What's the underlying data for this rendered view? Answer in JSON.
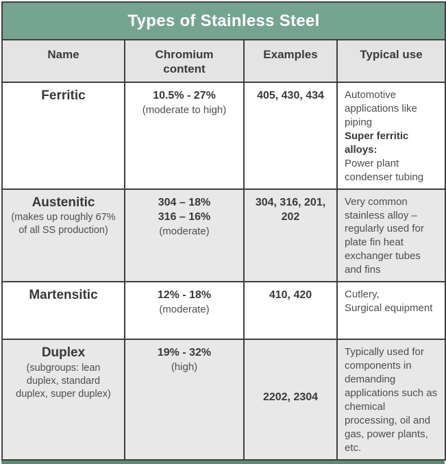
{
  "title": "Types of Stainless Steel",
  "columns": [
    "Name",
    "Chromium content",
    "Examples",
    "Typical use"
  ],
  "rows": [
    {
      "name": "Ferritic",
      "name_note": "",
      "chromium_line1": "10.5% - 27%",
      "chromium_line2": "",
      "chromium_note": "(moderate to high)",
      "examples": "405, 430, 434",
      "use_before": "Automotive applications like piping",
      "use_bold": "Super ferritic alloys:",
      "use_after": "Power plant condenser tubing"
    },
    {
      "name": "Austenitic",
      "name_note": "(makes up roughly 67% of all SS production)",
      "chromium_line1": "304 – 18%",
      "chromium_line2": "316 – 16%",
      "chromium_note": "(moderate)",
      "examples": "304, 316, 201, 202",
      "use_before": "Very common stainless alloy – regularly used for plate fin heat exchanger tubes and fins",
      "use_bold": "",
      "use_after": ""
    },
    {
      "name": "Martensitic",
      "name_note": "",
      "chromium_line1": "12% - 18%",
      "chromium_line2": "",
      "chromium_note": "(moderate)",
      "examples": "410, 420",
      "use_before": "Cutlery,\nSurgical equipment",
      "use_bold": "",
      "use_after": ""
    },
    {
      "name": "Duplex",
      "name_note": "(subgroups: lean duplex, standard duplex, super duplex)",
      "chromium_line1": "19% - 32%",
      "chromium_line2": "",
      "chromium_note": "(high)",
      "examples": "2202, 2304",
      "use_before": "Typically used for components in demanding applications such as chemical processing, oil and gas, power plants, etc.",
      "use_bold": "",
      "use_after": ""
    }
  ],
  "colors": {
    "header_green": "#76a492",
    "bottom_strip_green": "#5e8977",
    "header_gray": "#e4e4e4",
    "row_shade_gray": "#e8e8e8",
    "border_dark": "#3e3e3e",
    "text_dark": "#383838",
    "text_body": "#4d4d4d",
    "title_text": "#ffffff"
  }
}
